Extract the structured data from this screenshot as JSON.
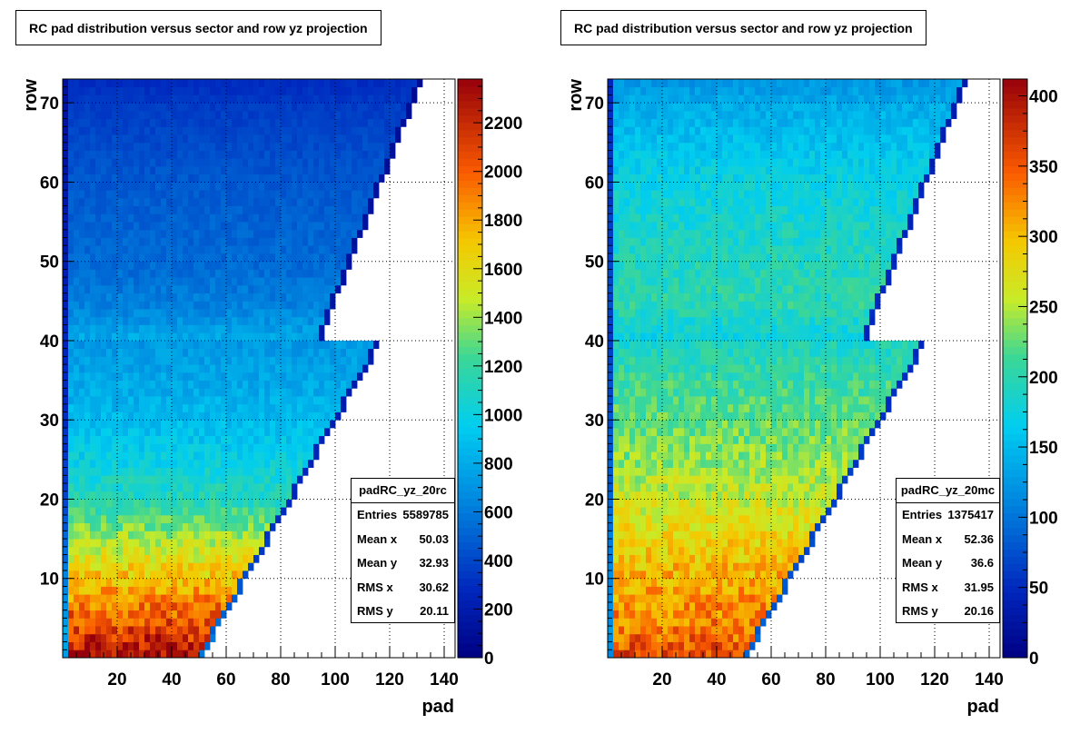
{
  "chart_data": [
    {
      "type": "heatmap",
      "title": "RC pad distribution versus sector and row yz projection",
      "xlabel": "pad",
      "ylabel": "row",
      "xlim": [
        0,
        144
      ],
      "ylim": [
        0,
        73
      ],
      "x_ticks": [
        20,
        40,
        60,
        80,
        100,
        120,
        140
      ],
      "y_ticks": [
        10,
        20,
        30,
        40,
        50,
        60,
        70
      ],
      "z_range": [
        0,
        2380
      ],
      "z_ticks": [
        0,
        200,
        400,
        600,
        800,
        1000,
        1200,
        1400,
        1600,
        1800,
        2000,
        2200
      ],
      "grid": true,
      "palette": "rainbow",
      "row_profile": [
        {
          "row": 1,
          "value": 2300
        },
        {
          "row": 5,
          "value": 2050
        },
        {
          "row": 10,
          "value": 1750
        },
        {
          "row": 15,
          "value": 1450
        },
        {
          "row": 20,
          "value": 1150
        },
        {
          "row": 25,
          "value": 1000
        },
        {
          "row": 30,
          "value": 880
        },
        {
          "row": 35,
          "value": 790
        },
        {
          "row": 40,
          "value": 720
        },
        {
          "row": 41,
          "value": 780
        },
        {
          "row": 45,
          "value": 620
        },
        {
          "row": 50,
          "value": 540
        },
        {
          "row": 60,
          "value": 470
        },
        {
          "row": 70,
          "value": 360
        },
        {
          "row": 73,
          "value": 300
        }
      ],
      "stats": {
        "name": "padRC_yz_20rc",
        "rows": [
          {
            "label": "Entries",
            "value": "5589785"
          },
          {
            "label": "Mean x",
            "value": "50.03"
          },
          {
            "label": "Mean y",
            "value": "32.93"
          },
          {
            "label": "RMS x",
            "value": "30.62"
          },
          {
            "label": "RMS y",
            "value": "20.11"
          }
        ]
      }
    },
    {
      "type": "heatmap",
      "title": "RC pad distribution versus sector and row yz projection",
      "xlabel": "pad",
      "ylabel": "row",
      "xlim": [
        0,
        144
      ],
      "ylim": [
        0,
        73
      ],
      "x_ticks": [
        20,
        40,
        60,
        80,
        100,
        120,
        140
      ],
      "y_ticks": [
        10,
        20,
        30,
        40,
        50,
        60,
        70
      ],
      "z_range": [
        0,
        412
      ],
      "z_ticks": [
        0,
        50,
        100,
        150,
        200,
        250,
        300,
        350,
        400
      ],
      "grid": true,
      "palette": "rainbow",
      "row_profile": [
        {
          "row": 1,
          "value": 355
        },
        {
          "row": 5,
          "value": 330
        },
        {
          "row": 10,
          "value": 310
        },
        {
          "row": 15,
          "value": 285
        },
        {
          "row": 20,
          "value": 260
        },
        {
          "row": 25,
          "value": 240
        },
        {
          "row": 30,
          "value": 225
        },
        {
          "row": 35,
          "value": 210
        },
        {
          "row": 40,
          "value": 190
        },
        {
          "row": 41,
          "value": 175
        },
        {
          "row": 45,
          "value": 200
        },
        {
          "row": 50,
          "value": 195
        },
        {
          "row": 60,
          "value": 175
        },
        {
          "row": 70,
          "value": 140
        },
        {
          "row": 73,
          "value": 125
        }
      ],
      "stats": {
        "name": "padRC_yz_20mc",
        "rows": [
          {
            "label": "Entries",
            "value": "1375417"
          },
          {
            "label": "Mean x",
            "value": "52.36"
          },
          {
            "label": "Mean y",
            "value": "36.6"
          },
          {
            "label": "RMS x",
            "value": "31.95"
          },
          {
            "label": "RMS y",
            "value": "20.16"
          }
        ]
      }
    }
  ]
}
